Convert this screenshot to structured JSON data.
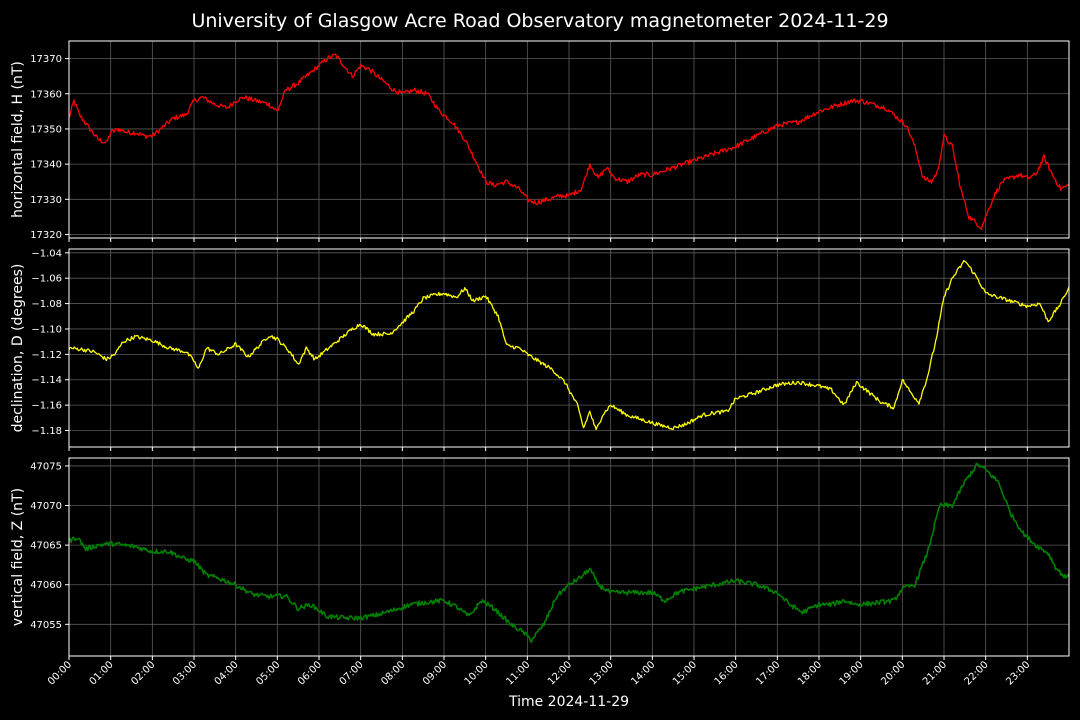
{
  "title": "University of Glasgow Acre Road Observatory magnetometer 2024-11-29",
  "chart_data": [
    {
      "type": "line",
      "ylabel": "horizontal field, H (nT)",
      "ylim": [
        17319,
        17375
      ],
      "yticks": [
        17320,
        17330,
        17340,
        17350,
        17360,
        17370
      ],
      "tick_format": "int",
      "grid": true,
      "series": [
        {
          "color": "#ff0000",
          "noise": 0.7,
          "x": [
            0,
            0.12,
            0.25,
            0.5,
            0.7,
            0.9,
            1.0,
            1.2,
            1.4,
            1.6,
            1.8,
            2.0,
            2.2,
            2.5,
            2.8,
            3.0,
            3.2,
            3.5,
            3.8,
            4.0,
            4.2,
            4.5,
            4.8,
            5.0,
            5.2,
            5.5,
            5.8,
            6.0,
            6.2,
            6.4,
            6.6,
            6.8,
            7.0,
            7.2,
            7.5,
            7.8,
            8.0,
            8.3,
            8.6,
            8.9,
            9.2,
            9.5,
            9.8,
            10.0,
            10.2,
            10.5,
            10.8,
            11.0,
            11.2,
            11.5,
            11.8,
            12.0,
            12.3,
            12.5,
            12.7,
            12.9,
            13.1,
            13.4,
            13.7,
            14.0,
            14.5,
            15.0,
            15.5,
            16.0,
            16.5,
            17.0,
            17.5,
            18.0,
            18.5,
            18.8,
            19.0,
            19.3,
            19.6,
            19.9,
            20.1,
            20.3,
            20.5,
            20.7,
            20.85,
            21.0,
            21.2,
            21.4,
            21.6,
            21.8,
            21.9,
            22.0,
            22.2,
            22.4,
            22.6,
            22.8,
            23.0,
            23.2,
            23.4,
            23.6,
            23.8,
            24.0
          ],
          "y": [
            17353,
            17358,
            17354,
            17350,
            17347,
            17346,
            17349,
            17350,
            17349,
            17349,
            17348,
            17348,
            17350,
            17353,
            17354,
            17358,
            17359,
            17357,
            17356,
            17358,
            17359,
            17358,
            17357,
            17355,
            17361,
            17363,
            17366,
            17368,
            17370,
            17371,
            17368,
            17365,
            17368,
            17367,
            17364,
            17361,
            17360,
            17361,
            17360,
            17355,
            17352,
            17347,
            17340,
            17335,
            17334,
            17335,
            17333,
            17330,
            17329,
            17330,
            17331,
            17331,
            17333,
            17340,
            17336,
            17339,
            17336,
            17335,
            17337,
            17337,
            17339,
            17341,
            17343,
            17345,
            17348,
            17351,
            17352,
            17355,
            17357,
            17358,
            17358,
            17357,
            17356,
            17353,
            17351,
            17345,
            17336,
            17335,
            17338,
            17348,
            17345,
            17333,
            17325,
            17323,
            17322,
            17325,
            17331,
            17335,
            17336,
            17337,
            17336,
            17337,
            17342,
            17337,
            17333,
            17334
          ]
        }
      ]
    },
    {
      "type": "line",
      "ylabel": "declination, D (degrees)",
      "ylim": [
        -1.193,
        -1.037
      ],
      "yticks": [
        -1.18,
        -1.16,
        -1.14,
        -1.12,
        -1.1,
        -1.08,
        -1.06,
        -1.04
      ],
      "tick_format": "2dp",
      "grid": true,
      "series": [
        {
          "color": "#ffff00",
          "noise": 0.0015,
          "x": [
            0,
            0.3,
            0.6,
            0.9,
            1.1,
            1.3,
            1.6,
            2.0,
            2.4,
            2.8,
            3.0,
            3.1,
            3.3,
            3.6,
            4.0,
            4.3,
            4.6,
            4.8,
            5.0,
            5.3,
            5.5,
            5.7,
            5.9,
            6.2,
            6.5,
            6.8,
            7.0,
            7.3,
            7.7,
            8.0,
            8.3,
            8.5,
            8.8,
            9.0,
            9.3,
            9.5,
            9.7,
            10.0,
            10.3,
            10.5,
            10.8,
            11.0,
            11.3,
            11.6,
            11.9,
            12.2,
            12.35,
            12.5,
            12.65,
            12.8,
            13.0,
            13.4,
            13.8,
            14.2,
            14.5,
            14.8,
            15.2,
            15.5,
            15.8,
            16.0,
            16.5,
            17.0,
            17.5,
            18.0,
            18.3,
            18.6,
            18.9,
            19.2,
            19.5,
            19.8,
            20.0,
            20.2,
            20.4,
            20.6,
            20.8,
            21.0,
            21.2,
            21.5,
            21.8,
            22.0,
            22.3,
            22.6,
            23.0,
            23.3,
            23.5,
            23.8,
            24.0
          ],
          "y": [
            -1.115,
            -1.116,
            -1.118,
            -1.124,
            -1.12,
            -1.11,
            -1.106,
            -1.109,
            -1.115,
            -1.118,
            -1.125,
            -1.132,
            -1.115,
            -1.12,
            -1.112,
            -1.122,
            -1.112,
            -1.105,
            -1.108,
            -1.118,
            -1.128,
            -1.115,
            -1.124,
            -1.116,
            -1.108,
            -1.1,
            -1.096,
            -1.104,
            -1.104,
            -1.095,
            -1.085,
            -1.076,
            -1.073,
            -1.072,
            -1.075,
            -1.068,
            -1.078,
            -1.074,
            -1.09,
            -1.113,
            -1.115,
            -1.12,
            -1.126,
            -1.132,
            -1.142,
            -1.16,
            -1.178,
            -1.165,
            -1.18,
            -1.168,
            -1.16,
            -1.168,
            -1.172,
            -1.176,
            -1.178,
            -1.175,
            -1.168,
            -1.166,
            -1.165,
            -1.155,
            -1.15,
            -1.144,
            -1.142,
            -1.145,
            -1.148,
            -1.16,
            -1.142,
            -1.15,
            -1.158,
            -1.162,
            -1.14,
            -1.15,
            -1.158,
            -1.138,
            -1.11,
            -1.075,
            -1.06,
            -1.046,
            -1.06,
            -1.072,
            -1.075,
            -1.078,
            -1.082,
            -1.08,
            -1.094,
            -1.08,
            -1.067
          ]
        }
      ]
    },
    {
      "type": "line",
      "ylabel": "vertical field, Z (nT)",
      "ylim": [
        47051,
        47076
      ],
      "yticks": [
        47055,
        47060,
        47065,
        47070,
        47075
      ],
      "tick_format": "int",
      "grid": true,
      "series": [
        {
          "color": "#008000",
          "noise": 0.3,
          "x": [
            0,
            0.2,
            0.4,
            0.7,
            1.0,
            1.3,
            1.6,
            2.0,
            2.4,
            2.8,
            3.0,
            3.3,
            3.6,
            4.0,
            4.4,
            4.8,
            5.2,
            5.5,
            5.8,
            6.2,
            6.6,
            7.0,
            7.4,
            7.8,
            8.2,
            8.6,
            9.0,
            9.3,
            9.6,
            9.9,
            10.2,
            10.6,
            10.9,
            11.1,
            11.4,
            11.7,
            12.0,
            12.3,
            12.5,
            12.7,
            13.0,
            13.5,
            14.0,
            14.3,
            14.6,
            15.0,
            15.5,
            16.0,
            16.5,
            17.0,
            17.3,
            17.6,
            18.0,
            18.3,
            18.6,
            18.9,
            19.2,
            19.5,
            19.8,
            20.0,
            20.3,
            20.6,
            20.9,
            21.2,
            21.5,
            21.8,
            22.0,
            22.3,
            22.6,
            22.9,
            23.2,
            23.5,
            23.7,
            23.9,
            24.0
          ],
          "y": [
            47065.5,
            47066,
            47064.5,
            47065,
            47065.2,
            47065,
            47064.8,
            47064.2,
            47064.2,
            47063.2,
            47063,
            47061.2,
            47060.8,
            47060,
            47058.8,
            47058.5,
            47058.6,
            47057,
            47057.5,
            47056,
            47055.8,
            47055.8,
            47056.2,
            47056.8,
            47057.5,
            47057.8,
            47058,
            47057.2,
            47056,
            47058,
            47057,
            47055,
            47054,
            47053,
            47055,
            47058.5,
            47060,
            47061,
            47062,
            47060,
            47059,
            47059,
            47059,
            47058,
            47059,
            47059.5,
            47060,
            47060.5,
            47060,
            47059,
            47057.5,
            47056.5,
            47057.5,
            47057.5,
            47058,
            47057.5,
            47057.6,
            47057.8,
            47058,
            47059.5,
            47060,
            47064,
            47070,
            47070,
            47073,
            47075.2,
            47074.5,
            47073,
            47069,
            47066.5,
            47065,
            47064,
            47062,
            47061,
            47061
          ]
        }
      ]
    }
  ],
  "x_axis": {
    "label": "Time 2024-11-29",
    "range": [
      0,
      24
    ],
    "tick_labels": [
      "00:00",
      "01:00",
      "02:00",
      "03:00",
      "04:00",
      "05:00",
      "06:00",
      "07:00",
      "08:00",
      "09:00",
      "10:00",
      "11:00",
      "12:00",
      "13:00",
      "14:00",
      "15:00",
      "16:00",
      "17:00",
      "18:00",
      "19:00",
      "20:00",
      "21:00",
      "22:00",
      "23:00"
    ]
  }
}
